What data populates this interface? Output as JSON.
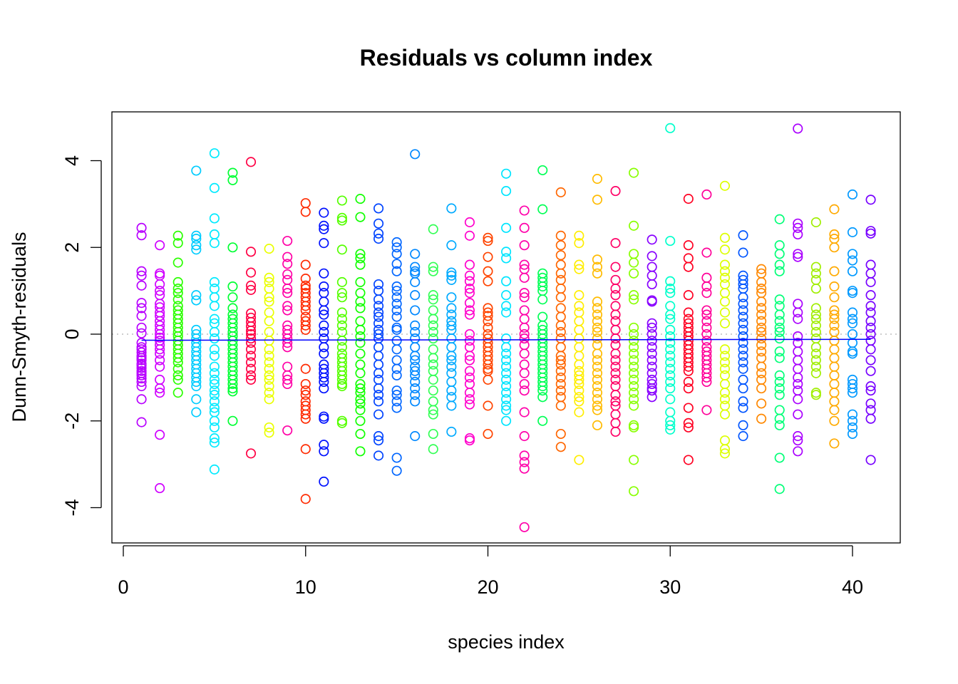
{
  "chart_data": {
    "type": "scatter",
    "title": "Residuals vs column index",
    "xlabel": "species index",
    "ylabel": "Dunn-Smyth-residuals",
    "xlim": [
      0,
      42
    ],
    "ylim": [
      -4.5,
      4.8
    ],
    "xticks": [
      0,
      10,
      20,
      30,
      40
    ],
    "yticks": [
      -4,
      -2,
      0,
      2,
      4
    ],
    "grid": false,
    "legend": "none",
    "reference_line_y": 0,
    "trend_line": [
      {
        "x": 1,
        "y": -0.14
      },
      {
        "x": 41,
        "y": -0.12
      }
    ],
    "trend_line_color": "#0000ff",
    "reference_line_color": "#bdbdbd",
    "point_color_scheme": "rainbow by species index",
    "point_colors": [
      "#b800ff",
      "#d000ff",
      "#2bff00",
      "#00ccff",
      "#00eaff",
      "#00ff33",
      "#ff0044",
      "#eaff00",
      "#ff00a6",
      "#ff2a00",
      "#0011ff",
      "#55ff00",
      "#11ff00",
      "#0044ff",
      "#0066ff",
      "#0088ff",
      "#33ff55",
      "#00aaff",
      "#ff00cc",
      "#ff4400",
      "#00e5ff",
      "#ff00aa",
      "#00ff55",
      "#ff6600",
      "#ffee00",
      "#ffbb00",
      "#ff0066",
      "#88ff00",
      "#8800ff",
      "#00ffcc",
      "#ff0022",
      "#ff0099",
      "#ddff00",
      "#0055ff",
      "#ff8800",
      "#00ff77",
      "#aa00ff",
      "#a0ee00",
      "#ffaa00",
      "#0099ff",
      "#7700ff"
    ],
    "series": [
      {
        "x": 1,
        "y": [
          2.45,
          2.28,
          1.45,
          1.35,
          1.12,
          0.72,
          0.6,
          0.42,
          0.15,
          0.02,
          -0.2,
          -0.3,
          -0.35,
          -0.42,
          -0.5,
          -0.55,
          -0.6,
          -0.68,
          -0.72,
          -0.78,
          -0.85,
          -0.9,
          -0.95,
          -1.02,
          -1.1,
          -1.2,
          -1.5,
          -2.03
        ]
      },
      {
        "x": 2,
        "y": [
          2.05,
          1.4,
          1.35,
          1.15,
          1.0,
          0.9,
          0.7,
          0.62,
          0.5,
          0.42,
          0.3,
          0.2,
          0.1,
          0.0,
          -0.08,
          -0.15,
          -0.25,
          -0.35,
          -0.45,
          -0.6,
          -0.75,
          -1.05,
          -1.25,
          -1.35,
          -2.32,
          -3.55
        ]
      },
      {
        "x": 3,
        "y": [
          2.27,
          2.1,
          1.65,
          1.2,
          1.05,
          0.95,
          0.8,
          0.65,
          0.55,
          0.45,
          0.35,
          0.25,
          0.15,
          0.05,
          -0.05,
          -0.15,
          -0.25,
          -0.35,
          -0.45,
          -0.55,
          -0.65,
          -0.8,
          -0.95,
          -1.05,
          -1.35
        ]
      },
      {
        "x": 4,
        "y": [
          3.77,
          2.27,
          2.2,
          2.05,
          1.95,
          0.9,
          0.78,
          0.1,
          0.0,
          -0.1,
          -0.2,
          -0.3,
          -0.4,
          -0.5,
          -0.6,
          -0.7,
          -0.8,
          -0.9,
          -1.0,
          -1.1,
          -1.2,
          -1.5,
          -1.8
        ]
      },
      {
        "x": 5,
        "y": [
          4.17,
          3.37,
          2.67,
          2.3,
          2.1,
          1.2,
          1.05,
          0.85,
          0.65,
          0.35,
          0.25,
          0.05,
          -0.1,
          -0.35,
          -0.5,
          -0.75,
          -0.9,
          -1.05,
          -1.15,
          -1.3,
          -1.4,
          -1.55,
          -1.7,
          -1.8,
          -2.0,
          -2.15,
          -2.4,
          -2.5,
          -3.12
        ]
      },
      {
        "x": 6,
        "y": [
          3.72,
          3.55,
          2.0,
          1.1,
          0.85,
          0.6,
          0.45,
          0.35,
          0.25,
          0.15,
          0.05,
          -0.05,
          -0.15,
          -0.25,
          -0.35,
          -0.45,
          -0.55,
          -0.65,
          -0.75,
          -0.85,
          -0.95,
          -1.05,
          -1.15,
          -1.25,
          -1.32,
          -2.0
        ]
      },
      {
        "x": 7,
        "y": [
          3.97,
          1.9,
          1.42,
          1.12,
          1.02,
          0.48,
          0.38,
          0.28,
          0.18,
          0.08,
          0.0,
          -0.1,
          -0.2,
          -0.35,
          -0.5,
          -0.65,
          -0.8,
          -0.95,
          -1.05,
          -2.75
        ]
      },
      {
        "x": 8,
        "y": [
          1.97,
          1.3,
          1.2,
          1.05,
          0.85,
          0.75,
          0.5,
          0.3,
          0.05,
          -0.15,
          -0.35,
          -0.5,
          -0.65,
          -0.8,
          -0.95,
          -1.05,
          -1.2,
          -1.35,
          -1.5,
          -2.15,
          -2.27
        ]
      },
      {
        "x": 9,
        "y": [
          2.15,
          1.78,
          1.62,
          1.38,
          1.25,
          1.05,
          0.95,
          0.65,
          0.55,
          0.2,
          0.1,
          0.0,
          -0.1,
          -0.2,
          -0.3,
          -0.75,
          -0.95,
          -1.05,
          -1.15,
          -2.22
        ]
      },
      {
        "x": 10,
        "y": [
          3.02,
          2.82,
          1.6,
          1.28,
          1.12,
          1.05,
          0.95,
          0.85,
          0.75,
          0.65,
          0.55,
          0.4,
          0.3,
          0.2,
          0.1,
          -0.8,
          -1.15,
          -1.3,
          -1.4,
          -1.55,
          -1.65,
          -1.75,
          -1.85,
          -1.95,
          -2.65,
          -3.8
        ]
      },
      {
        "x": 11,
        "y": [
          2.8,
          2.5,
          2.42,
          2.1,
          1.4,
          1.1,
          0.95,
          0.75,
          0.55,
          0.45,
          0.2,
          0.05,
          -0.1,
          -0.3,
          -0.45,
          -0.7,
          -0.8,
          -0.9,
          -1.0,
          -1.1,
          -1.25,
          -1.9,
          -1.95,
          -2.55,
          -2.7,
          -3.4
        ]
      },
      {
        "x": 12,
        "y": [
          3.08,
          2.68,
          2.62,
          1.95,
          1.2,
          0.95,
          0.85,
          0.5,
          0.35,
          0.2,
          0.05,
          -0.15,
          -0.3,
          -0.45,
          -0.55,
          -0.65,
          -0.75,
          -0.85,
          -0.95,
          -1.05,
          -1.15,
          -1.2,
          -2.0,
          -2.05
        ]
      },
      {
        "x": 13,
        "y": [
          3.12,
          2.7,
          1.85,
          1.75,
          1.6,
          1.2,
          0.95,
          0.75,
          0.6,
          0.3,
          0.1,
          -0.05,
          -0.2,
          -0.45,
          -0.7,
          -0.9,
          -1.15,
          -1.25,
          -1.35,
          -1.5,
          -1.6,
          -1.75,
          -2.0,
          -2.3,
          -2.7
        ]
      },
      {
        "x": 14,
        "y": [
          2.9,
          2.55,
          2.32,
          2.2,
          1.15,
          1.0,
          0.8,
          0.65,
          0.5,
          0.4,
          0.25,
          0.1,
          0.0,
          -0.1,
          -0.3,
          -0.5,
          -0.7,
          -0.9,
          -1.05,
          -1.25,
          -1.4,
          -1.55,
          -1.85,
          -2.35,
          -2.45,
          -2.8
        ]
      },
      {
        "x": 15,
        "y": [
          2.12,
          2.0,
          1.85,
          1.62,
          1.45,
          1.1,
          1.0,
          0.85,
          0.7,
          0.55,
          0.4,
          0.15,
          0.1,
          -0.15,
          -0.35,
          -0.6,
          -0.8,
          -0.95,
          -1.3,
          -1.4,
          -1.55,
          -1.7,
          -2.85,
          -3.15
        ]
      },
      {
        "x": 16,
        "y": [
          4.15,
          1.85,
          1.55,
          1.45,
          1.4,
          1.2,
          0.9,
          0.55,
          0.2,
          0.05,
          -0.1,
          -0.3,
          -0.5,
          -0.6,
          -0.75,
          -0.85,
          -0.95,
          -1.1,
          -1.25,
          -1.4,
          -1.55,
          -2.35
        ]
      },
      {
        "x": 17,
        "y": [
          2.42,
          1.55,
          1.45,
          0.9,
          0.8,
          0.55,
          0.35,
          0.2,
          0.05,
          -0.1,
          -0.35,
          -0.55,
          -0.7,
          -0.85,
          -1.05,
          -1.3,
          -1.55,
          -1.75,
          -1.85,
          -2.3,
          -2.65
        ]
      },
      {
        "x": 18,
        "y": [
          2.9,
          2.05,
          1.42,
          1.35,
          1.25,
          0.85,
          0.6,
          0.45,
          0.3,
          0.2,
          0.1,
          -0.1,
          -0.3,
          -0.5,
          -0.6,
          -0.75,
          -0.9,
          -1.1,
          -1.3,
          -1.45,
          -1.65,
          -2.25
        ]
      },
      {
        "x": 19,
        "y": [
          2.58,
          2.27,
          1.6,
          1.35,
          1.22,
          1.05,
          0.95,
          0.72,
          0.55,
          0.45,
          0.0,
          -0.15,
          -0.3,
          -0.5,
          -0.6,
          -0.85,
          -1.0,
          -1.15,
          -1.35,
          -1.5,
          -1.62,
          -2.4,
          -2.45
        ]
      },
      {
        "x": 20,
        "y": [
          2.22,
          2.15,
          1.78,
          1.45,
          1.22,
          0.6,
          0.5,
          0.42,
          0.3,
          0.15,
          0.0,
          -0.1,
          -0.2,
          -0.3,
          -0.4,
          -0.5,
          -0.6,
          -0.7,
          -0.8,
          -0.85,
          -1.05,
          -1.65,
          -2.3
        ]
      },
      {
        "x": 21,
        "y": [
          3.7,
          3.3,
          2.45,
          1.9,
          1.75,
          1.22,
          0.9,
          0.65,
          0.5,
          -0.1,
          -0.3,
          -0.45,
          -0.6,
          -0.75,
          -0.9,
          -1.05,
          -1.2,
          -1.35,
          -1.5,
          -1.65,
          -1.75,
          -2.0
        ]
      },
      {
        "x": 22,
        "y": [
          2.85,
          2.45,
          2.05,
          1.6,
          1.5,
          1.3,
          0.95,
          0.85,
          0.55,
          0.35,
          0.15,
          0.0,
          -0.1,
          -0.25,
          -0.45,
          -0.7,
          -0.9,
          -1.15,
          -1.3,
          -1.8,
          -2.35,
          -2.8,
          -2.95,
          -3.1,
          -4.45
        ]
      },
      {
        "x": 23,
        "y": [
          3.78,
          2.88,
          1.4,
          1.3,
          1.2,
          1.1,
          1.0,
          0.8,
          0.4,
          0.2,
          0.1,
          0.0,
          -0.1,
          -0.2,
          -0.3,
          -0.4,
          -0.5,
          -0.6,
          -0.7,
          -0.8,
          -0.9,
          -1.0,
          -1.1,
          -1.2,
          -1.3,
          -1.45,
          -2.0
        ]
      },
      {
        "x": 24,
        "y": [
          3.27,
          2.27,
          2.05,
          1.82,
          1.6,
          1.4,
          1.25,
          1.05,
          0.85,
          0.6,
          0.4,
          0.2,
          0.05,
          -0.1,
          -0.3,
          -0.5,
          -0.6,
          -0.7,
          -0.85,
          -1.0,
          -1.15,
          -1.3,
          -1.45,
          -1.65,
          -2.3,
          -2.6
        ]
      },
      {
        "x": 25,
        "y": [
          2.27,
          2.1,
          1.6,
          1.5,
          0.9,
          0.65,
          0.5,
          0.3,
          0.1,
          -0.1,
          -0.3,
          -0.5,
          -0.7,
          -0.85,
          -0.95,
          -1.05,
          -1.15,
          -1.3,
          -1.45,
          -1.55,
          -1.8,
          -2.9
        ]
      },
      {
        "x": 26,
        "y": [
          3.58,
          3.1,
          1.72,
          1.55,
          1.4,
          0.75,
          0.6,
          0.45,
          0.3,
          0.15,
          0.05,
          -0.1,
          -0.25,
          -0.45,
          -0.6,
          -0.75,
          -0.9,
          -1.05,
          -1.2,
          -1.35,
          -1.5,
          -1.65,
          -1.75,
          -2.1
        ]
      },
      {
        "x": 27,
        "y": [
          3.3,
          2.1,
          1.55,
          1.25,
          1.05,
          0.9,
          0.65,
          0.45,
          0.3,
          0.1,
          -0.1,
          -0.25,
          -0.45,
          -0.6,
          -0.75,
          -0.9,
          -1.05,
          -1.2,
          -1.4,
          -1.55,
          -1.65,
          -1.85,
          -2.05,
          -2.25
        ]
      },
      {
        "x": 28,
        "y": [
          3.72,
          2.5,
          1.85,
          1.65,
          1.4,
          0.9,
          0.8,
          0.15,
          0.0,
          -0.15,
          -0.3,
          -0.45,
          -0.6,
          -0.75,
          -0.9,
          -1.05,
          -1.2,
          -1.35,
          -1.5,
          -1.65,
          -2.1,
          -2.15,
          -2.9,
          -3.62
        ]
      },
      {
        "x": 29,
        "y": [
          2.18,
          1.8,
          1.55,
          1.35,
          1.15,
          0.78,
          0.75,
          0.25,
          0.15,
          0.0,
          -0.15,
          -0.3,
          -0.45,
          -0.6,
          -0.75,
          -0.9,
          -1.05,
          -1.15,
          -1.25,
          -1.3,
          -1.45
        ]
      },
      {
        "x": 30,
        "y": [
          4.75,
          2.15,
          1.22,
          1.05,
          0.95,
          0.65,
          0.45,
          0.35,
          0.1,
          -0.05,
          -0.2,
          -0.35,
          -0.5,
          -0.65,
          -0.8,
          -0.95,
          -1.1,
          -1.25,
          -1.5,
          -1.8,
          -2.0,
          -2.1,
          -2.2
        ]
      },
      {
        "x": 31,
        "y": [
          3.12,
          2.05,
          1.75,
          1.55,
          0.9,
          0.5,
          0.35,
          0.25,
          0.15,
          0.05,
          -0.05,
          -0.15,
          -0.25,
          -0.35,
          -0.45,
          -0.55,
          -0.65,
          -0.75,
          -0.85,
          -1.1,
          -1.25,
          -1.7,
          -2.05,
          -2.15,
          -2.9
        ]
      },
      {
        "x": 32,
        "y": [
          3.22,
          1.88,
          1.3,
          1.1,
          0.95,
          0.55,
          0.45,
          0.3,
          0.15,
          0.0,
          -0.15,
          -0.3,
          -0.4,
          -0.5,
          -0.6,
          -0.7,
          -0.8,
          -0.9,
          -1.0,
          -1.1,
          -1.75
        ]
      },
      {
        "x": 33,
        "y": [
          3.42,
          2.22,
          1.95,
          1.6,
          1.45,
          1.3,
          1.15,
          0.95,
          0.75,
          0.5,
          0.25,
          -0.35,
          -0.5,
          -0.65,
          -0.8,
          -0.95,
          -1.15,
          -1.35,
          -1.5,
          -1.65,
          -1.85,
          -2.45,
          -2.65,
          -2.75
        ]
      },
      {
        "x": 34,
        "y": [
          2.28,
          1.88,
          1.35,
          1.25,
          1.15,
          1.05,
          0.85,
          0.7,
          0.55,
          0.4,
          0.25,
          0.1,
          -0.05,
          -0.2,
          -0.35,
          -0.5,
          -0.65,
          -0.8,
          -1.05,
          -1.25,
          -1.55,
          -1.7,
          -2.1,
          -2.35
        ]
      },
      {
        "x": 35,
        "y": [
          1.5,
          1.4,
          1.2,
          1.05,
          0.95,
          0.75,
          0.6,
          0.45,
          0.3,
          0.15,
          0.05,
          -0.1,
          -0.25,
          -0.4,
          -0.55,
          -0.75,
          -0.9,
          -1.05,
          -1.25,
          -1.6,
          -1.95
        ]
      },
      {
        "x": 36,
        "y": [
          2.65,
          2.05,
          1.85,
          1.6,
          1.45,
          0.8,
          0.65,
          0.45,
          0.3,
          0.15,
          0.05,
          -0.1,
          -0.4,
          -0.55,
          -0.95,
          -1.1,
          -1.25,
          -1.4,
          -1.75,
          -1.95,
          -2.1,
          -2.85,
          -3.57
        ]
      },
      {
        "x": 37,
        "y": [
          4.74,
          2.55,
          2.45,
          2.3,
          1.85,
          1.78,
          0.7,
          0.5,
          0.35,
          -0.05,
          -0.2,
          -0.4,
          -0.6,
          -0.8,
          -1.0,
          -1.15,
          -1.3,
          -1.5,
          -1.85,
          -2.35,
          -2.45,
          -2.7
        ]
      },
      {
        "x": 38,
        "y": [
          2.58,
          1.55,
          1.4,
          1.25,
          1.05,
          0.6,
          0.45,
          0.35,
          0.2,
          0.05,
          -0.1,
          -0.3,
          -0.45,
          -0.6,
          -0.75,
          -0.9,
          -1.35,
          -1.4
        ]
      },
      {
        "x": 39,
        "y": [
          2.88,
          2.3,
          2.2,
          2.0,
          1.45,
          1.1,
          0.85,
          0.55,
          0.45,
          0.35,
          0.2,
          0.05,
          -0.15,
          -0.35,
          -0.55,
          -0.75,
          -0.95,
          -1.15,
          -1.35,
          -1.55,
          -1.75,
          -2.0,
          -2.52
        ]
      },
      {
        "x": 40,
        "y": [
          3.22,
          2.35,
          1.85,
          1.7,
          1.45,
          1.0,
          0.95,
          0.5,
          0.35,
          0.25,
          0.0,
          -0.2,
          -0.4,
          -0.45,
          -1.05,
          -1.15,
          -1.25,
          -1.35,
          -1.85,
          -2.0,
          -2.15,
          -2.3
        ]
      },
      {
        "x": 41,
        "y": [
          3.1,
          2.38,
          2.32,
          1.6,
          1.4,
          1.2,
          0.9,
          0.65,
          0.5,
          0.3,
          0.15,
          0.0,
          -0.15,
          -0.35,
          -0.6,
          -0.85,
          -1.2,
          -1.3,
          -1.6,
          -1.75,
          -1.95,
          -2.9
        ]
      }
    ]
  }
}
